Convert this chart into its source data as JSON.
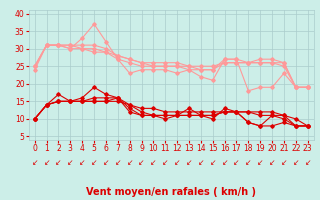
{
  "background_color": "#cceee8",
  "grid_color": "#aacccc",
  "xlabel": "Vent moyen/en rafales ( km/h )",
  "xlabel_color": "#dd0000",
  "xlabel_fontsize": 7,
  "tick_color": "#dd0000",
  "tick_fontsize": 5.5,
  "ylim": [
    4,
    41
  ],
  "xlim": [
    -0.5,
    23.5
  ],
  "yticks": [
    5,
    10,
    15,
    20,
    25,
    30,
    35,
    40
  ],
  "xticks": [
    0,
    1,
    2,
    3,
    4,
    5,
    6,
    7,
    8,
    9,
    10,
    11,
    12,
    13,
    14,
    15,
    16,
    17,
    18,
    19,
    20,
    21,
    22,
    23
  ],
  "light_lines": [
    [
      24,
      31,
      31,
      30,
      33,
      37,
      32,
      27,
      23,
      24,
      24,
      24,
      23,
      24,
      22,
      21,
      27,
      27,
      18,
      19,
      19,
      23,
      19,
      19
    ],
    [
      25,
      31,
      31,
      30,
      30,
      30,
      29,
      27,
      26,
      25,
      25,
      25,
      25,
      24,
      24,
      24,
      27,
      27,
      26,
      26,
      26,
      26,
      19,
      19
    ],
    [
      25,
      31,
      31,
      31,
      30,
      29,
      29,
      28,
      27,
      26,
      25,
      25,
      25,
      25,
      24,
      24,
      26,
      26,
      26,
      26,
      26,
      25,
      19,
      19
    ],
    [
      25,
      31,
      31,
      31,
      31,
      31,
      30,
      28,
      27,
      26,
      26,
      26,
      26,
      25,
      25,
      25,
      26,
      26,
      26,
      27,
      27,
      26,
      19,
      19
    ]
  ],
  "dark_lines": [
    [
      10,
      14,
      17,
      15,
      16,
      19,
      17,
      16,
      12,
      11,
      11,
      10,
      11,
      13,
      11,
      10,
      13,
      12,
      9,
      8,
      11,
      11,
      10,
      8
    ],
    [
      10,
      14,
      15,
      15,
      15,
      16,
      16,
      16,
      13,
      11,
      11,
      11,
      11,
      11,
      11,
      11,
      12,
      12,
      9,
      8,
      8,
      9,
      8,
      8
    ],
    [
      10,
      14,
      15,
      15,
      15,
      15,
      15,
      16,
      14,
      12,
      11,
      11,
      11,
      11,
      11,
      11,
      12,
      12,
      12,
      11,
      11,
      10,
      8,
      8
    ],
    [
      10,
      14,
      15,
      15,
      15,
      15,
      15,
      15,
      14,
      13,
      13,
      12,
      12,
      12,
      12,
      12,
      12,
      12,
      12,
      12,
      12,
      11,
      8,
      8
    ]
  ],
  "light_color": "#ff9999",
  "dark_color": "#dd0000",
  "markersize": 1.8,
  "linewidth": 0.8,
  "arrow_char": "↙",
  "arrow_fontsize": 5.5
}
